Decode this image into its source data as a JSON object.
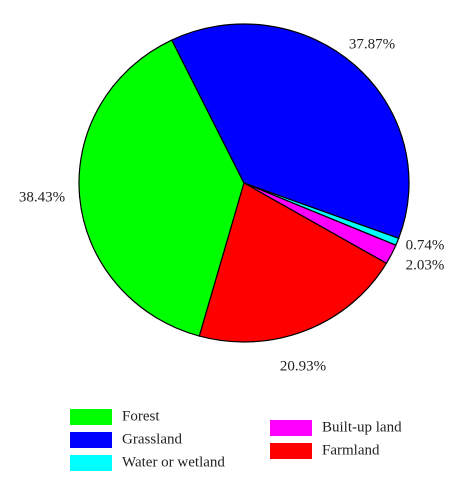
{
  "chart_data": {
    "type": "pie",
    "categories": [
      "Forest",
      "Grassland",
      "Water or wetland",
      "Built-up land",
      "Farmland"
    ],
    "values": [
      38.43,
      37.87,
      0.74,
      2.03,
      20.93
    ],
    "value_labels": [
      "38.43%",
      "37.87%",
      "0.74%",
      "2.03%",
      "20.93%"
    ],
    "colors": [
      "#00ff00",
      "#0000ff",
      "#00ffff",
      "#ff00ff",
      "#ff0000"
    ]
  }
}
